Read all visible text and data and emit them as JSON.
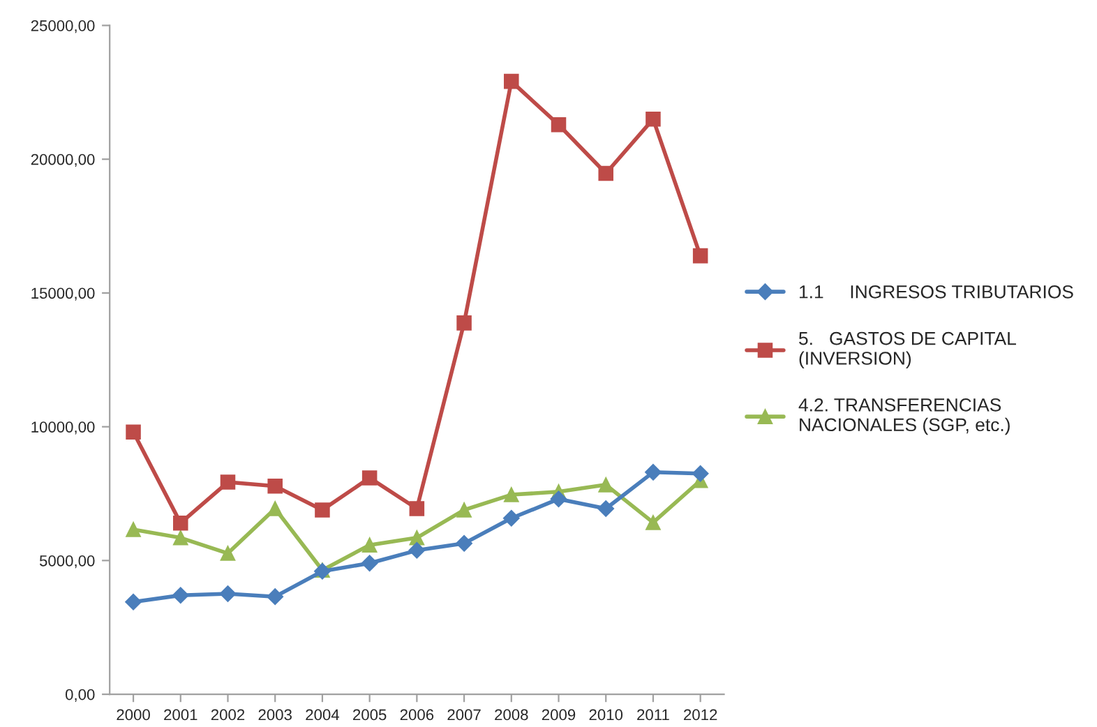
{
  "chart_data": {
    "type": "line",
    "categories": [
      "2000",
      "2001",
      "2002",
      "2003",
      "2004",
      "2005",
      "2006",
      "2007",
      "2008",
      "2009",
      "2010",
      "2011",
      "2012"
    ],
    "series": [
      {
        "name": "1.1     INGRESOS TRIBUTARIOS",
        "color": "#4a7ebb",
        "marker": "diamond",
        "values": [
          3450,
          3700,
          3760,
          3650,
          4600,
          4900,
          5380,
          5640,
          6580,
          7300,
          6940,
          8300,
          8250
        ]
      },
      {
        "name": "5.   GASTOS DE CAPITAL\n(INVERSION)",
        "color": "#be4b48",
        "marker": "square",
        "values": [
          9800,
          6400,
          7930,
          7780,
          6890,
          8090,
          6940,
          13880,
          22910,
          21290,
          19470,
          21500,
          16390
        ]
      },
      {
        "name": "4.2. TRANSFERENCIAS\nNACIONALES (SGP, etc.)",
        "color": "#98b954",
        "marker": "triangle",
        "values": [
          6160,
          5850,
          5270,
          6940,
          4640,
          5580,
          5850,
          6890,
          7460,
          7570,
          7830,
          6420,
          7990
        ]
      }
    ],
    "ylim": [
      0,
      25000
    ],
    "yticks": [
      {
        "value": 0,
        "label": "0,00"
      },
      {
        "value": 5000,
        "label": "5000,00"
      },
      {
        "value": 10000,
        "label": "10000,00"
      },
      {
        "value": 15000,
        "label": "15000,00"
      },
      {
        "value": 20000,
        "label": "20000,00"
      },
      {
        "value": 25000,
        "label": "25000,00"
      }
    ],
    "grid": false,
    "legend": "right"
  }
}
